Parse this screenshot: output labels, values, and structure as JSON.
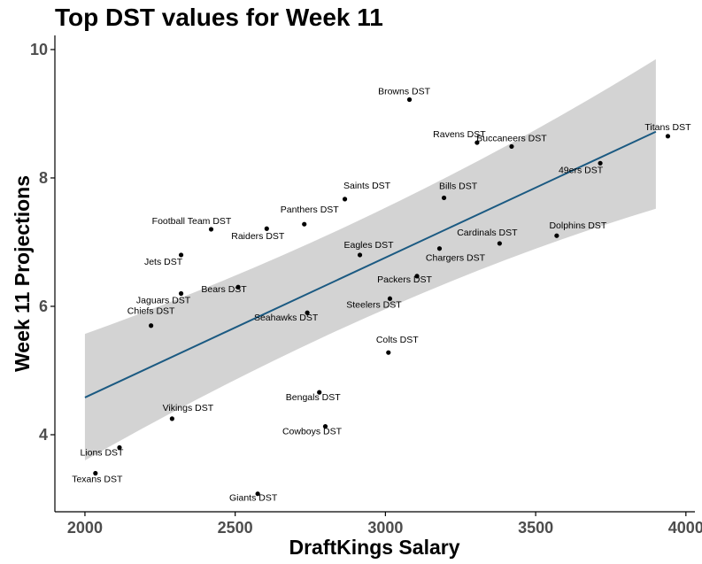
{
  "chart_data": {
    "type": "scatter",
    "title": "Top DST values for Week 11",
    "xlabel": "DraftKings Salary",
    "ylabel": "Week 11 Projections",
    "xlim": [
      1900,
      4030
    ],
    "ylim": [
      2.8,
      10.22
    ],
    "xticks": [
      2000,
      2500,
      3000,
      3500,
      4000
    ],
    "yticks": [
      4,
      6,
      8,
      10
    ],
    "grid": false,
    "colors": {
      "points": "#000000",
      "trend_line": "#1b5a82",
      "ribbon": "#d3d3d3"
    },
    "trend_line": {
      "x": [
        2000,
        3900
      ],
      "y": [
        4.58,
        8.72
      ],
      "band_lower": [
        3.6,
        7.52
      ],
      "band_upper": [
        5.57,
        9.85
      ]
    },
    "points": [
      {
        "label": "Browns DST",
        "x": 3080,
        "y": 9.22
      },
      {
        "label": "Ravens DST",
        "x": 3305,
        "y": 8.55
      },
      {
        "label": "Buccaneers DST",
        "x": 3420,
        "y": 8.49
      },
      {
        "label": "Titans DST",
        "x": 3940,
        "y": 8.65
      },
      {
        "label": "49ers DST",
        "x": 3715,
        "y": 8.23
      },
      {
        "label": "Saints DST",
        "x": 2865,
        "y": 7.67
      },
      {
        "label": "Bills DST",
        "x": 3195,
        "y": 7.69
      },
      {
        "label": "Football Team DST",
        "x": 2420,
        "y": 7.2
      },
      {
        "label": "Panthers DST",
        "x": 2730,
        "y": 7.28
      },
      {
        "label": "Raiders DST",
        "x": 2605,
        "y": 7.21
      },
      {
        "label": "Cardinals DST",
        "x": 3380,
        "y": 6.98
      },
      {
        "label": "Dolphins DST",
        "x": 3570,
        "y": 7.1
      },
      {
        "label": "Jets DST",
        "x": 2320,
        "y": 6.8
      },
      {
        "label": "Eagles DST",
        "x": 2915,
        "y": 6.8
      },
      {
        "label": "Chargers DST",
        "x": 3180,
        "y": 6.9
      },
      {
        "label": "Packers DST",
        "x": 3105,
        "y": 6.47
      },
      {
        "label": "Bears DST",
        "x": 2510,
        "y": 6.3
      },
      {
        "label": "Jaguars DST",
        "x": 2320,
        "y": 6.2
      },
      {
        "label": "Steelers DST",
        "x": 3015,
        "y": 6.12
      },
      {
        "label": "Seahawks DST",
        "x": 2740,
        "y": 5.9
      },
      {
        "label": "Chiefs DST",
        "x": 2220,
        "y": 5.7
      },
      {
        "label": "Colts DST",
        "x": 3010,
        "y": 5.28
      },
      {
        "label": "Bengals DST",
        "x": 2780,
        "y": 4.66
      },
      {
        "label": "Vikings DST",
        "x": 2290,
        "y": 4.25
      },
      {
        "label": "Cowboys DST",
        "x": 2800,
        "y": 4.13
      },
      {
        "label": "Lions DST",
        "x": 2115,
        "y": 3.8
      },
      {
        "label": "Texans DST",
        "x": 2035,
        "y": 3.4
      },
      {
        "label": "Giants DST",
        "x": 2575,
        "y": 3.08
      }
    ]
  }
}
